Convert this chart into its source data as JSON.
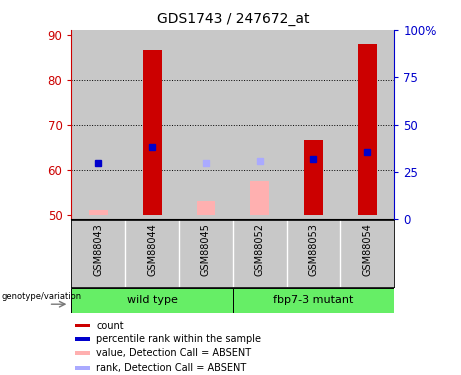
{
  "title": "GDS1743 / 247672_at",
  "samples": [
    "GSM88043",
    "GSM88044",
    "GSM88045",
    "GSM88052",
    "GSM88053",
    "GSM88054"
  ],
  "groups": [
    {
      "label": "wild type",
      "span": [
        0,
        2
      ]
    },
    {
      "label": "fbp7-3 mutant",
      "span": [
        3,
        5
      ]
    }
  ],
  "ylim_left": [
    49,
    91
  ],
  "ylim_right": [
    0,
    100
  ],
  "yticks_left": [
    50,
    60,
    70,
    80,
    90
  ],
  "yticks_right": [
    0,
    25,
    50,
    75,
    100
  ],
  "yticklabels_right": [
    "0",
    "25",
    "50",
    "75",
    "100%"
  ],
  "grid_values": [
    60,
    70,
    80
  ],
  "bar_bottom": 50,
  "count_bars_present": [
    {
      "sample_idx": 1,
      "value": 86.5,
      "color": "#CC0000"
    },
    {
      "sample_idx": 4,
      "value": 66.5,
      "color": "#CC0000"
    },
    {
      "sample_idx": 5,
      "value": 88.0,
      "color": "#CC0000"
    }
  ],
  "count_bars_absent": [
    {
      "sample_idx": 0,
      "value": 51.0,
      "color": "#FFB0B0"
    },
    {
      "sample_idx": 2,
      "value": 53.0,
      "color": "#FFB0B0"
    },
    {
      "sample_idx": 3,
      "value": 57.5,
      "color": "#FFB0B0"
    }
  ],
  "rank_markers_present": [
    {
      "sample_idx": 0,
      "value": 61.5,
      "color": "#0000CC"
    },
    {
      "sample_idx": 1,
      "value": 65.0,
      "color": "#0000CC"
    },
    {
      "sample_idx": 4,
      "value": 62.5,
      "color": "#0000CC"
    },
    {
      "sample_idx": 5,
      "value": 64.0,
      "color": "#0000CC"
    }
  ],
  "rank_markers_absent": [
    {
      "sample_idx": 2,
      "value": 61.5,
      "color": "#AAAAFF"
    },
    {
      "sample_idx": 3,
      "value": 62.0,
      "color": "#AAAAFF"
    }
  ],
  "legend_items": [
    {
      "label": "count",
      "color": "#CC0000"
    },
    {
      "label": "percentile rank within the sample",
      "color": "#0000CC"
    },
    {
      "label": "value, Detection Call = ABSENT",
      "color": "#FFB0B0"
    },
    {
      "label": "rank, Detection Call = ABSENT",
      "color": "#AAAAFF"
    }
  ],
  "left_axis_color": "#CC0000",
  "right_axis_color": "#0000CC",
  "col_bg_color": "#C8C8C8",
  "group_bg_color": "#66EE66",
  "marker_size": 5,
  "bar_width": 0.35,
  "fig_width": 4.61,
  "fig_height": 3.75,
  "fig_dpi": 100
}
